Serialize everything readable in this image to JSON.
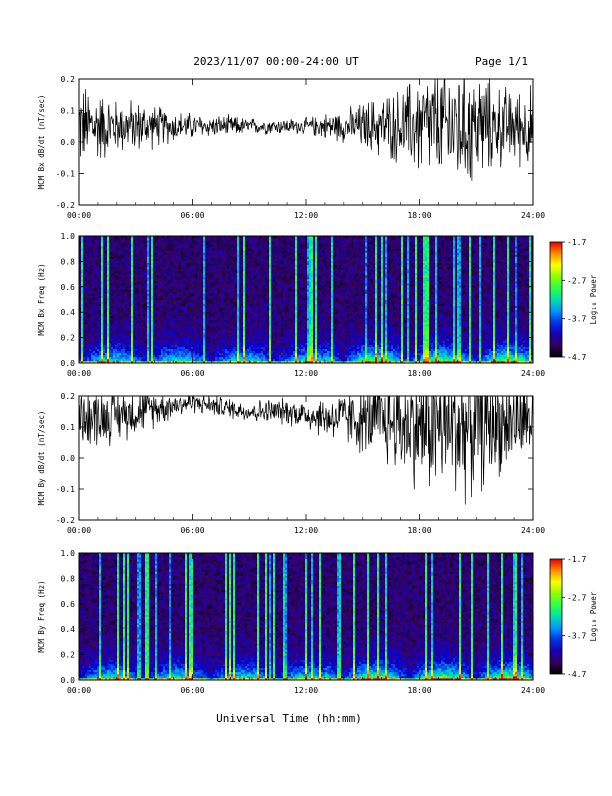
{
  "header": {
    "date_range": "2023/11/07  00:00-24:00 UT",
    "page": "Page 1/1"
  },
  "x_axis": {
    "label": "Universal Time (hh:mm)",
    "ticks": [
      "00:00",
      "06:00",
      "12:00",
      "18:00",
      "24:00"
    ],
    "range_hours": [
      0,
      24
    ]
  },
  "colorbar": {
    "label": "Log₁₀ Power",
    "ticks": [
      "-1.7",
      "-2.7",
      "-3.7",
      "-4.7"
    ],
    "range": [
      -4.7,
      -1.7
    ]
  },
  "chart_data": [
    {
      "type": "line",
      "ylabel": "MCM Bx dB/dt (nT/sec)",
      "ylim": [
        -0.2,
        0.2
      ],
      "yticks": [
        "0.2",
        "0.1",
        "0.0",
        "-0.1",
        "-0.2"
      ],
      "xlim": [
        0,
        24
      ],
      "color": "#000000",
      "series": [
        {
          "x": [
            0,
            1,
            2,
            3,
            4,
            5,
            6,
            7,
            8,
            9,
            10,
            11,
            12,
            13,
            14,
            15,
            16,
            17,
            18,
            19,
            20,
            21,
            22,
            23,
            24
          ],
          "center": [
            0.05,
            0.05,
            0.05,
            0.05,
            0.05,
            0.05,
            0.05,
            0.05,
            0.05,
            0.05,
            0.05,
            0.05,
            0.05,
            0.05,
            0.05,
            0.05,
            0.05,
            0.05,
            0.05,
            0.05,
            0.05,
            0.05,
            0.05,
            0.05,
            0.05
          ],
          "spread": [
            0.16,
            0.14,
            0.1,
            0.1,
            0.08,
            0.06,
            0.05,
            0.04,
            0.04,
            0.03,
            0.03,
            0.03,
            0.03,
            0.05,
            0.06,
            0.09,
            0.12,
            0.14,
            0.2,
            0.22,
            0.25,
            0.22,
            0.16,
            0.14,
            0.16
          ]
        }
      ]
    },
    {
      "type": "heatmap",
      "ylabel": "MCM Bx Freq (Hz)",
      "ylim": [
        0.0,
        1.0
      ],
      "yticks": [
        "1.0",
        "0.8",
        "0.6",
        "0.4",
        "0.2",
        "0.0"
      ],
      "xlim": [
        0,
        24
      ],
      "zlim": [
        -4.7,
        -1.7
      ],
      "bright_stripe_hours": [
        1.5,
        2.8,
        3.9,
        10.1,
        11.5,
        12.5,
        15.7,
        18.4,
        21.9,
        23.8
      ]
    },
    {
      "type": "line",
      "ylabel": "MCM By dB/dt (nT/sec)",
      "ylim": [
        -0.2,
        0.2
      ],
      "yticks": [
        "0.2",
        "0.1",
        "0.0",
        "-0.1",
        "-0.2"
      ],
      "xlim": [
        0,
        24
      ],
      "color": "#000000",
      "series": [
        {
          "x": [
            0,
            1,
            2,
            3,
            4,
            5,
            6,
            7,
            8,
            9,
            10,
            11,
            12,
            13,
            14,
            15,
            16,
            17,
            18,
            19,
            20,
            21,
            22,
            23,
            24
          ],
          "center": [
            0.14,
            0.13,
            0.14,
            0.15,
            0.16,
            0.17,
            0.18,
            0.17,
            0.16,
            0.15,
            0.15,
            0.15,
            0.14,
            0.13,
            0.13,
            0.12,
            0.12,
            0.11,
            0.1,
            0.1,
            0.1,
            0.1,
            0.11,
            0.12,
            0.13
          ],
          "spread": [
            0.12,
            0.11,
            0.1,
            0.09,
            0.07,
            0.05,
            0.04,
            0.04,
            0.04,
            0.04,
            0.05,
            0.05,
            0.06,
            0.08,
            0.1,
            0.13,
            0.16,
            0.19,
            0.24,
            0.26,
            0.28,
            0.25,
            0.2,
            0.18,
            0.16
          ]
        }
      ]
    },
    {
      "type": "heatmap",
      "ylabel": "MCM By Freq (Hz)",
      "ylim": [
        0.0,
        1.0
      ],
      "yticks": [
        "1.0",
        "0.8",
        "0.6",
        "0.4",
        "0.2",
        "0.0"
      ],
      "xlim": [
        0,
        24
      ],
      "zlim": [
        -4.7,
        -1.7
      ],
      "bright_stripe_hours": [
        2.6,
        3.6,
        7.8,
        9.5,
        12.0,
        12.7,
        15.3,
        18.3,
        20.8,
        22.4,
        23.1
      ]
    }
  ]
}
